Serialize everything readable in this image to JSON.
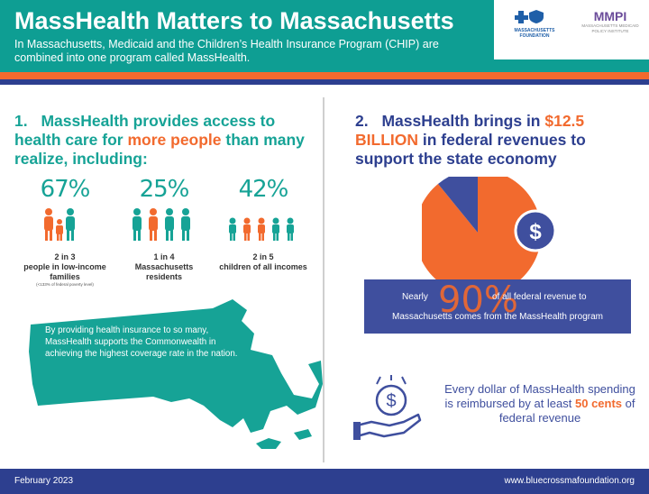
{
  "header": {
    "title": "MassHealth Matters to Massachusetts",
    "subtitle": "In Massachusetts, Medicaid and the Children’s Health Insurance Program (CHIP) are combined into one program called MassHealth.",
    "logos": {
      "bcbs": {
        "mark": "BCBS",
        "text": "MASSACHUSETTS FOUNDATION"
      },
      "mmpi": {
        "mark": "MMPI",
        "text": "MASSACHUSETTS MEDICAID POLICY INSTITUTE"
      }
    }
  },
  "section1": {
    "number": "1.",
    "title_part1": "MassHealth provides access to health care for ",
    "title_highlight": "more people",
    "title_part2": " than many realize, including:",
    "stats": [
      {
        "pct": "67%",
        "line1": "2 in 3",
        "line2": "people in low-income families",
        "footnote": "(<133% of federal poverty level)"
      },
      {
        "pct": "25%",
        "line1": "1 in 4",
        "line2": "Massachusetts residents",
        "footnote": ""
      },
      {
        "pct": "42%",
        "line1": "2 in 5",
        "line2": "children of all incomes",
        "footnote": ""
      }
    ],
    "map_text": "By providing health insurance to so many, MassHealth supports the Commonwealth in achieving the highest coverage rate in the nation."
  },
  "section2": {
    "number": "2.",
    "title_part1": "MassHealth brings in ",
    "title_highlight": "$12.5 BILLION",
    "title_part2": " in federal revenues to support the state economy",
    "pie": {
      "share": 90
    },
    "fed_box": {
      "prefix": "Nearly",
      "big": "90%",
      "suffix": "of all federal revenue to",
      "line2": "Massachusetts comes from the MassHealth program"
    },
    "dollar": {
      "text1": "Every dollar of MassHealth spending is reimbursed by at least ",
      "highlight": "50 cents",
      "text2": " of federal revenue"
    }
  },
  "footer": {
    "date": "February 2023",
    "url": "www.bluecrossmafoundation.org"
  },
  "colors": {
    "teal": "#16a396",
    "orange": "#f26a2e",
    "navy": "#2d3f8f"
  }
}
